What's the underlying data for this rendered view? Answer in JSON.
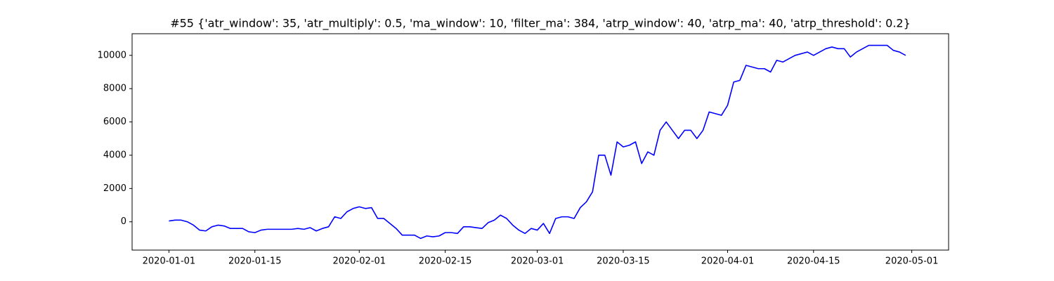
{
  "chart_data": {
    "type": "line",
    "title": "#55 {'atr_window': 35, 'atr_multiply': 0.5, 'ma_window': 10, 'filter_ma': 384, 'atrp_window': 40, 'atrp_ma': 40, 'atrp_threshold': 0.2}",
    "x": [
      "2020-01-01",
      "2020-01-02",
      "2020-01-03",
      "2020-01-04",
      "2020-01-05",
      "2020-01-06",
      "2020-01-07",
      "2020-01-08",
      "2020-01-09",
      "2020-01-10",
      "2020-01-11",
      "2020-01-12",
      "2020-01-13",
      "2020-01-14",
      "2020-01-15",
      "2020-01-16",
      "2020-01-17",
      "2020-01-18",
      "2020-01-19",
      "2020-01-20",
      "2020-01-21",
      "2020-01-22",
      "2020-01-23",
      "2020-01-24",
      "2020-01-25",
      "2020-01-26",
      "2020-01-27",
      "2020-01-28",
      "2020-01-29",
      "2020-01-30",
      "2020-01-31",
      "2020-02-01",
      "2020-02-02",
      "2020-02-03",
      "2020-02-04",
      "2020-02-05",
      "2020-02-06",
      "2020-02-07",
      "2020-02-08",
      "2020-02-09",
      "2020-02-10",
      "2020-02-11",
      "2020-02-12",
      "2020-02-13",
      "2020-02-14",
      "2020-02-15",
      "2020-02-16",
      "2020-02-17",
      "2020-02-18",
      "2020-02-19",
      "2020-02-20",
      "2020-02-21",
      "2020-02-22",
      "2020-02-23",
      "2020-02-24",
      "2020-02-25",
      "2020-02-26",
      "2020-02-27",
      "2020-02-28",
      "2020-02-29",
      "2020-03-01",
      "2020-03-02",
      "2020-03-03",
      "2020-03-04",
      "2020-03-05",
      "2020-03-06",
      "2020-03-07",
      "2020-03-08",
      "2020-03-09",
      "2020-03-10",
      "2020-03-11",
      "2020-03-12",
      "2020-03-13",
      "2020-03-14",
      "2020-03-15",
      "2020-03-16",
      "2020-03-17",
      "2020-03-18",
      "2020-03-19",
      "2020-03-20",
      "2020-03-21",
      "2020-03-22",
      "2020-03-23",
      "2020-03-24",
      "2020-03-25",
      "2020-03-26",
      "2020-03-27",
      "2020-03-28",
      "2020-03-29",
      "2020-03-30",
      "2020-03-31",
      "2020-04-01",
      "2020-04-02",
      "2020-04-03",
      "2020-04-04",
      "2020-04-05",
      "2020-04-06",
      "2020-04-07",
      "2020-04-08",
      "2020-04-09",
      "2020-04-10",
      "2020-04-11",
      "2020-04-12",
      "2020-04-13",
      "2020-04-14",
      "2020-04-15",
      "2020-04-16",
      "2020-04-17",
      "2020-04-18",
      "2020-04-19",
      "2020-04-20",
      "2020-04-21",
      "2020-04-22",
      "2020-04-23",
      "2020-04-24",
      "2020-04-25",
      "2020-04-26",
      "2020-04-27",
      "2020-04-28",
      "2020-04-29",
      "2020-04-30"
    ],
    "series": [
      {
        "color": "#0000ff",
        "values": [
          50,
          100,
          100,
          0,
          -200,
          -500,
          -550,
          -300,
          -200,
          -250,
          -400,
          -400,
          -400,
          -600,
          -650,
          -500,
          -450,
          -450,
          -450,
          -450,
          -450,
          -400,
          -450,
          -350,
          -550,
          -400,
          -300,
          300,
          200,
          600,
          800,
          900,
          800,
          850,
          200,
          200,
          -100,
          -400,
          -800,
          -800,
          -800,
          -1000,
          -850,
          -900,
          -850,
          -650,
          -650,
          -700,
          -300,
          -300,
          -350,
          -400,
          -50,
          100,
          400,
          200,
          -200,
          -500,
          -700,
          -400,
          -500,
          -100,
          -700,
          200,
          300,
          300,
          200,
          850,
          1200,
          1800,
          4000,
          4000,
          2800,
          4800,
          4500,
          4600,
          4800,
          3500,
          4200,
          4000,
          5500,
          6000,
          5500,
          5000,
          5500,
          5500,
          5000,
          5500,
          6600,
          6500,
          6400,
          7000,
          8400,
          8500,
          9400,
          9300,
          9200,
          9200,
          9000,
          9700,
          9600,
          9800,
          10000,
          10100,
          10200,
          10000,
          10200,
          10400,
          10500,
          10400,
          10400,
          9900,
          10200,
          10400,
          10600,
          10600,
          10600,
          10600,
          10300,
          10200,
          10000
        ]
      }
    ],
    "xlim": [
      "2019-12-26",
      "2020-05-07"
    ],
    "xticks": [
      "2020-01-01",
      "2020-01-15",
      "2020-02-01",
      "2020-02-15",
      "2020-03-01",
      "2020-03-15",
      "2020-04-01",
      "2020-04-15",
      "2020-05-01"
    ],
    "ylim": [
      -1700,
      11300
    ],
    "yticks": [
      0,
      2000,
      4000,
      6000,
      8000,
      10000
    ]
  }
}
